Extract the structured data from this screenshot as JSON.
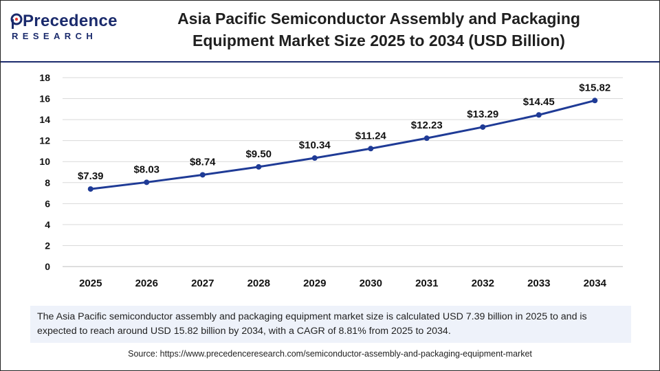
{
  "header": {
    "logo_top": "Precedence",
    "logo_bottom": "RESEARCH",
    "title_line1": "Asia Pacific Semiconductor Assembly and Packaging",
    "title_line2": "Equipment Market Size 2025 to 2034 (USD Billion)"
  },
  "colors": {
    "brand": "#1a2a6c",
    "line": "#1f3b96",
    "grid": "#d9d9d9",
    "summary_bg": "#eef2fa"
  },
  "chart_data": {
    "type": "line",
    "title": "Asia Pacific Semiconductor Assembly and Packaging Equipment Market Size 2025 to 2034 (USD Billion)",
    "xlabel": "",
    "ylabel": "",
    "categories": [
      "2025",
      "2026",
      "2027",
      "2028",
      "2029",
      "2030",
      "2031",
      "2032",
      "2033",
      "2034"
    ],
    "series": [
      {
        "values": [
          7.39,
          8.03,
          8.74,
          9.5,
          10.34,
          11.24,
          12.23,
          13.29,
          14.45,
          15.82
        ],
        "labels": [
          "$7.39",
          "$8.03",
          "$8.74",
          "$9.50",
          "$10.34",
          "$11.24",
          "$12.23",
          "$13.29",
          "$14.45",
          "$15.82"
        ]
      }
    ],
    "ylim": [
      0,
      18
    ],
    "yticks": [
      "0",
      "2",
      "4",
      "6",
      "8",
      "10",
      "12",
      "14",
      "16",
      "18"
    ],
    "grid": true,
    "legend": "none"
  },
  "summary": "The Asia Pacific semiconductor assembly and packaging equipment market size is calculated USD 7.39 billion in 2025 to and is expected to reach around USD 15.82 billion by 2034, with a CAGR of 8.81% from 2025 to 2034.",
  "source": "Source: https://www.precedenceresearch.com/semiconductor-assembly-and-packaging-equipment-market"
}
